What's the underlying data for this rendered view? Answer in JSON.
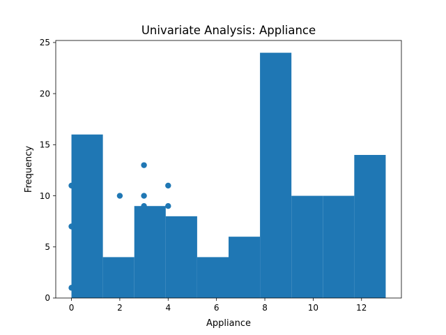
{
  "chart_data": {
    "type": "bar",
    "title": "Univariate Analysis: Appliance",
    "xlabel": "Appliance",
    "ylabel": "Frequency",
    "xlim": [
      -0.65,
      13.65
    ],
    "ylim": [
      0,
      25.2
    ],
    "x_ticks": [
      0,
      2,
      4,
      6,
      8,
      10,
      12
    ],
    "y_ticks": [
      0,
      5,
      10,
      15,
      20,
      25
    ],
    "grid": false,
    "color": "#1f77b4",
    "histogram": {
      "bins": [
        {
          "x0": 0.0,
          "x1": 1.3,
          "count": 16
        },
        {
          "x0": 1.3,
          "x1": 2.6,
          "count": 4
        },
        {
          "x0": 2.6,
          "x1": 3.9,
          "count": 9
        },
        {
          "x0": 3.9,
          "x1": 5.2,
          "count": 8
        },
        {
          "x0": 5.2,
          "x1": 6.5,
          "count": 4
        },
        {
          "x0": 6.5,
          "x1": 7.8,
          "count": 6
        },
        {
          "x0": 7.8,
          "x1": 9.1,
          "count": 24
        },
        {
          "x0": 9.1,
          "x1": 10.4,
          "count": 10
        },
        {
          "x0": 10.4,
          "x1": 11.7,
          "count": 10
        },
        {
          "x0": 11.7,
          "x1": 13.0,
          "count": 14
        }
      ]
    },
    "scatter": {
      "points": [
        {
          "x": 0,
          "y": 1
        },
        {
          "x": 0,
          "y": 7
        },
        {
          "x": 0,
          "y": 11
        },
        {
          "x": 2,
          "y": 10
        },
        {
          "x": 3,
          "y": 9
        },
        {
          "x": 3,
          "y": 10
        },
        {
          "x": 3,
          "y": 13
        },
        {
          "x": 4,
          "y": 9
        },
        {
          "x": 4,
          "y": 11
        }
      ]
    }
  }
}
